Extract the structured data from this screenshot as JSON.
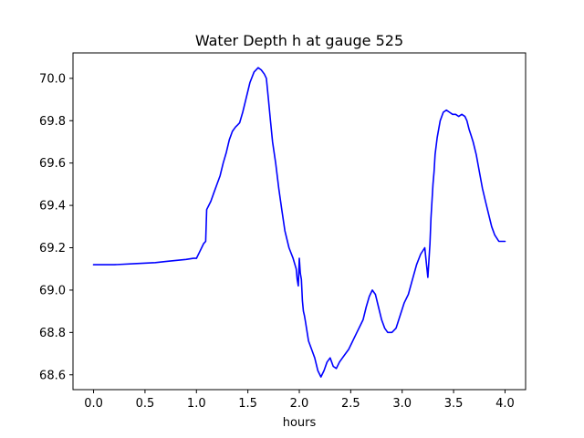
{
  "chart_data": {
    "type": "line",
    "title": "Water Depth h at gauge 525",
    "xlabel": "hours",
    "ylabel": "",
    "xlim": [
      -0.2,
      4.2
    ],
    "ylim": [
      68.53,
      70.12
    ],
    "xticks": [
      0.0,
      0.5,
      1.0,
      1.5,
      2.0,
      2.5,
      3.0,
      3.5,
      4.0
    ],
    "xtick_labels": [
      "0.0",
      "0.5",
      "1.0",
      "1.5",
      "2.0",
      "2.5",
      "3.0",
      "3.5",
      "4.0"
    ],
    "yticks": [
      68.6,
      68.8,
      69.0,
      69.2,
      69.4,
      69.6,
      69.8,
      70.0
    ],
    "ytick_labels": [
      "68.6",
      "68.8",
      "69.0",
      "69.2",
      "69.4",
      "69.6",
      "69.8",
      "70.0"
    ],
    "grid": false,
    "series": [
      {
        "color": "#0000ff",
        "x": [
          0.0,
          0.2,
          0.4,
          0.6,
          0.7,
          0.8,
          0.9,
          0.97,
          1.0,
          1.03,
          1.07,
          1.09,
          1.1,
          1.12,
          1.14,
          1.17,
          1.2,
          1.23,
          1.26,
          1.29,
          1.32,
          1.35,
          1.38,
          1.4,
          1.42,
          1.45,
          1.48,
          1.52,
          1.56,
          1.6,
          1.63,
          1.66,
          1.68,
          1.7,
          1.72,
          1.74,
          1.77,
          1.8,
          1.83,
          1.86,
          1.9,
          1.94,
          1.97,
          1.98,
          1.99,
          2.0,
          2.01,
          2.02,
          2.03,
          2.04,
          2.05,
          2.06,
          2.07,
          2.09,
          2.12,
          2.15,
          2.18,
          2.21,
          2.24,
          2.27,
          2.3,
          2.33,
          2.36,
          2.39,
          2.42,
          2.45,
          2.48,
          2.51,
          2.53,
          2.56,
          2.59,
          2.62,
          2.65,
          2.68,
          2.71,
          2.74,
          2.77,
          2.8,
          2.83,
          2.86,
          2.9,
          2.94,
          2.98,
          3.02,
          3.06,
          3.1,
          3.14,
          3.18,
          3.22,
          3.25,
          3.27,
          3.28,
          3.29,
          3.3,
          3.31,
          3.32,
          3.34,
          3.37,
          3.4,
          3.43,
          3.46,
          3.49,
          3.52,
          3.55,
          3.58,
          3.61,
          3.63,
          3.65,
          3.67,
          3.69,
          3.72,
          3.75,
          3.78,
          3.81,
          3.84,
          3.87,
          3.9,
          3.94,
          3.97,
          4.0
        ],
        "y": [
          69.12,
          69.12,
          69.125,
          69.13,
          69.135,
          69.14,
          69.145,
          69.15,
          69.15,
          69.18,
          69.22,
          69.23,
          69.38,
          69.4,
          69.42,
          69.46,
          69.5,
          69.54,
          69.6,
          69.65,
          69.71,
          69.75,
          69.77,
          69.78,
          69.79,
          69.84,
          69.9,
          69.98,
          70.03,
          70.05,
          70.04,
          70.02,
          70.0,
          69.9,
          69.8,
          69.7,
          69.6,
          69.48,
          69.38,
          69.28,
          69.2,
          69.15,
          69.1,
          69.05,
          69.02,
          69.15,
          69.08,
          69.05,
          68.95,
          68.9,
          68.88,
          68.85,
          68.82,
          68.76,
          68.72,
          68.68,
          68.62,
          68.59,
          68.62,
          68.66,
          68.68,
          68.64,
          68.63,
          68.66,
          68.68,
          68.7,
          68.72,
          68.75,
          68.77,
          68.8,
          68.83,
          68.86,
          68.92,
          68.97,
          69.0,
          68.98,
          68.92,
          68.86,
          68.82,
          68.8,
          68.8,
          68.82,
          68.88,
          68.94,
          68.98,
          69.05,
          69.12,
          69.17,
          69.2,
          69.06,
          69.22,
          69.34,
          69.42,
          69.5,
          69.56,
          69.64,
          69.72,
          69.8,
          69.84,
          69.85,
          69.84,
          69.83,
          69.83,
          69.82,
          69.83,
          69.82,
          69.8,
          69.76,
          69.73,
          69.7,
          69.64,
          69.56,
          69.48,
          69.42,
          69.36,
          69.3,
          69.26,
          69.23,
          69.23,
          69.23
        ]
      }
    ]
  }
}
